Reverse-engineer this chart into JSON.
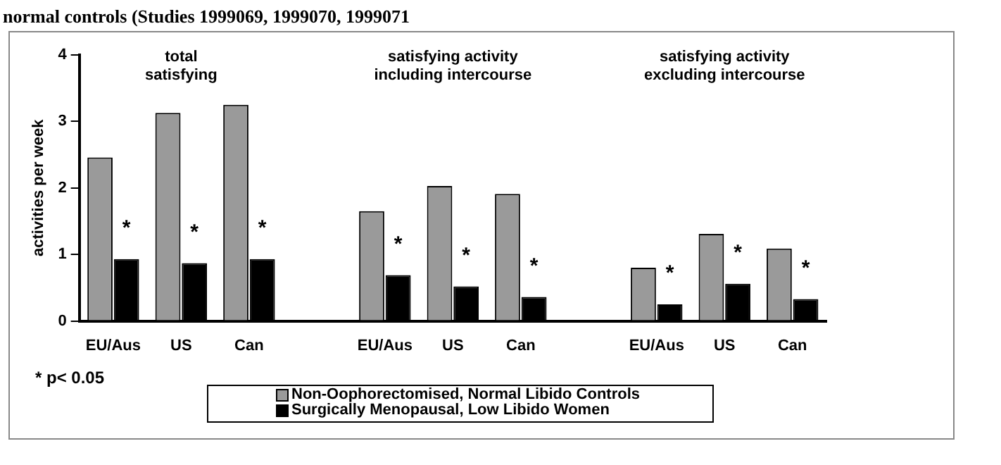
{
  "chart_data": {
    "type": "bar",
    "title": "normal controls (Studies 1999069, 1999070, 1999071",
    "ylabel": "activities per week",
    "categories": [
      "EU/Aus",
      "US",
      "Can",
      null,
      "EU/Aus",
      "US",
      "Can",
      null,
      "EU/Aus",
      "US",
      "Can"
    ],
    "series": [
      {
        "name": "Non-Oophorectomised, Normal Libido Controls",
        "color": "#9a9a9a",
        "values": [
          2.46,
          3.13,
          3.25,
          null,
          1.65,
          2.03,
          1.91,
          null,
          0.8,
          1.31,
          1.09
        ]
      },
      {
        "name": "Surgically Menopausal, Low Libido Women",
        "color": "#000000",
        "values": [
          0.93,
          0.87,
          0.93,
          null,
          0.69,
          0.52,
          0.36,
          null,
          0.25,
          0.56,
          0.33
        ],
        "value_labels": [
          "*",
          "*",
          "*",
          null,
          "*",
          "*",
          "*",
          null,
          "*",
          "*",
          "*"
        ]
      }
    ],
    "ylim": [
      0,
      4
    ],
    "yticks": [
      0,
      1,
      2,
      3,
      4
    ],
    "grid": false,
    "legend": "bottom",
    "annotations": [
      "total\nsatisfying",
      "satisfying activity\nincluding intercourse",
      "satisfying activity\nexcluding intercourse",
      "* p< 0.05"
    ]
  }
}
